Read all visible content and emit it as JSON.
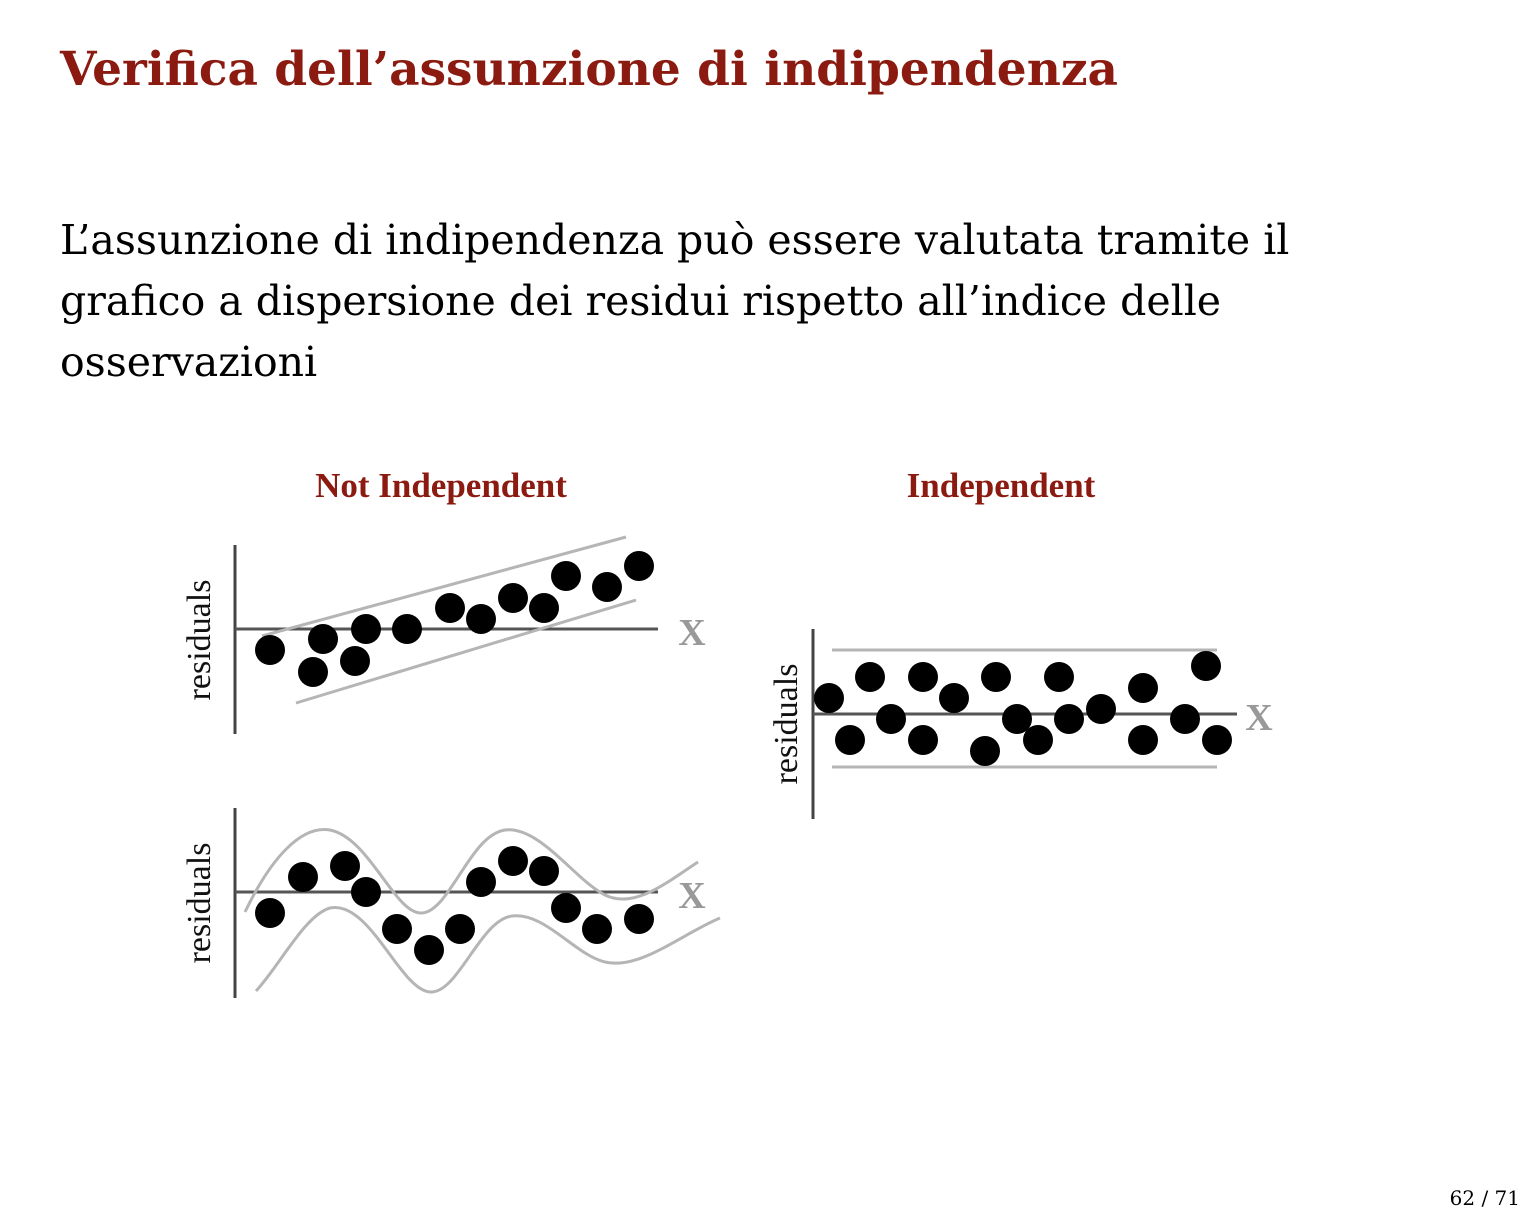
{
  "slide": {
    "title": "Verifica dell’assunzione di indipendenza",
    "body": "L’assunzione di indipendenza può essere valutata tramite il grafico a dispersione dei residui rispetto all’indice delle osservazioni",
    "page_number": "62 / 71"
  },
  "figure": {
    "colors": {
      "title": "#8b1a10",
      "axis": "#444444",
      "band": "#b5b5b5",
      "x_label": "#999999",
      "point": "#000000"
    },
    "panels": [
      {
        "id": "not-independent-trend",
        "title": "Not Independent",
        "ylabel": "residuals",
        "xlabel": "X",
        "pattern": "linear-trend"
      },
      {
        "id": "not-independent-wave",
        "title": "",
        "ylabel": "residuals",
        "xlabel": "X",
        "pattern": "cyclical"
      },
      {
        "id": "independent",
        "title": "Independent",
        "ylabel": "residuals",
        "xlabel": "X",
        "pattern": "random-band"
      }
    ]
  }
}
